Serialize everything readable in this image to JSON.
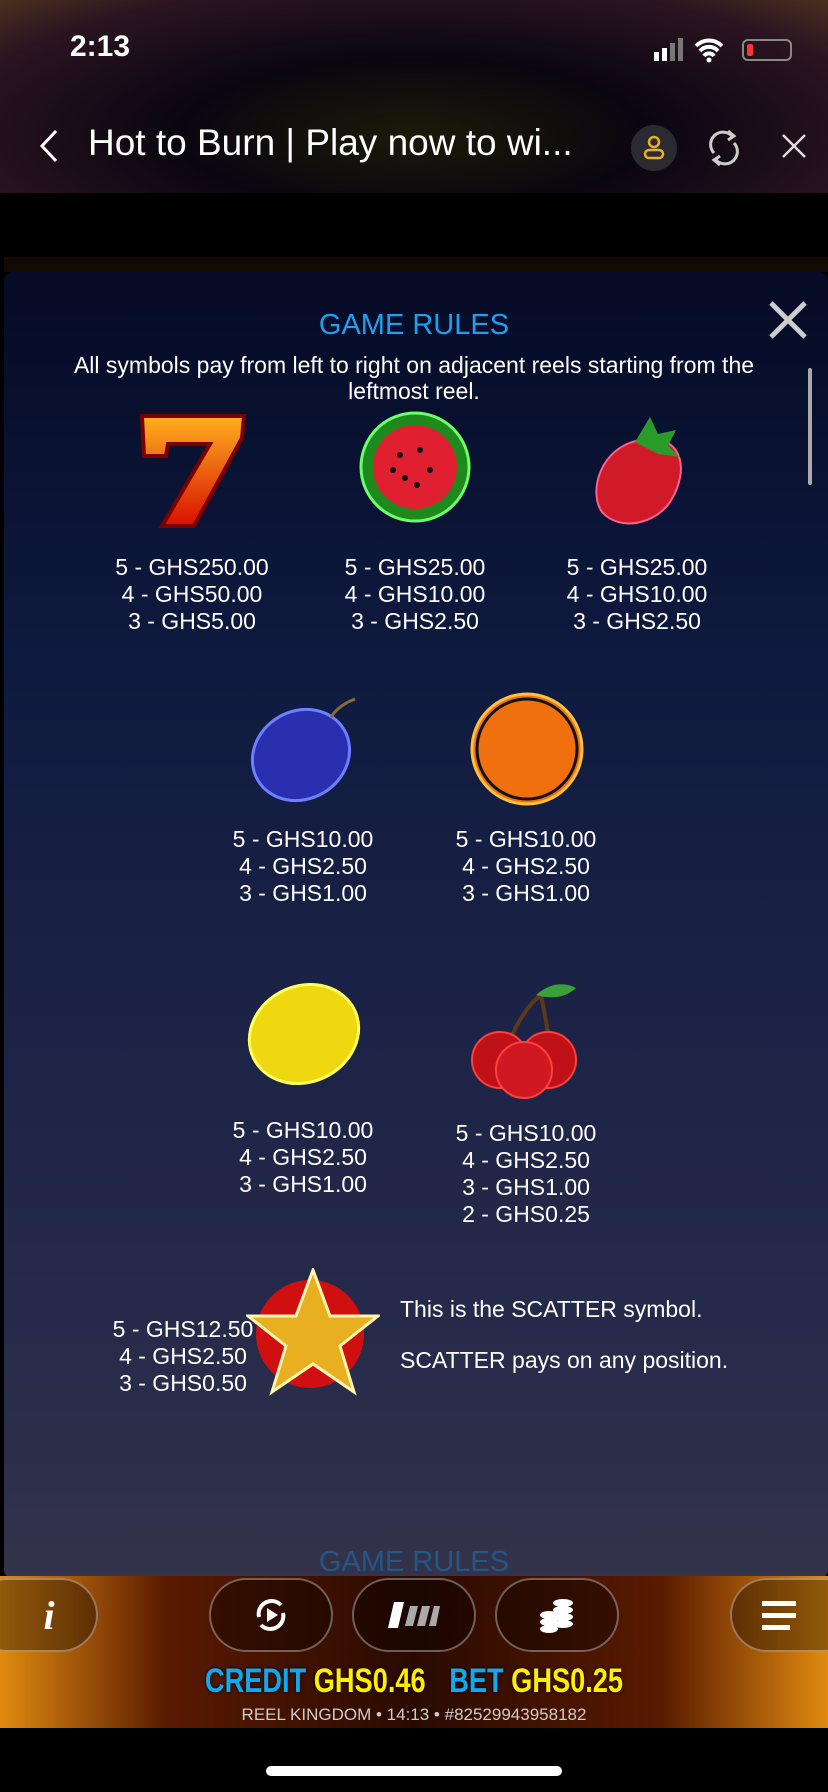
{
  "status": {
    "time": "2:13"
  },
  "browser": {
    "title": "Hot to Burn | Play now to wi...",
    "back_icon": "chevron-left-icon",
    "profile_icon": "user-icon",
    "reload_icon": "refresh-icon",
    "close_icon": "close-icon"
  },
  "rules": {
    "title": "GAME RULES",
    "intro": "All symbols pay from left to right on adjacent reels starting from the leftmost reel.",
    "symbols": [
      {
        "icon": "seven",
        "pays": [
          "5 - GHS250.00",
          "4 - GHS50.00",
          "3 - GHS5.00"
        ]
      },
      {
        "icon": "watermelon",
        "pays": [
          "5 - GHS25.00",
          "4 - GHS10.00",
          "3 - GHS2.50"
        ]
      },
      {
        "icon": "strawberry",
        "pays": [
          "5 - GHS25.00",
          "4 - GHS10.00",
          "3 - GHS2.50"
        ]
      },
      {
        "icon": "plum",
        "pays": [
          "5 - GHS10.00",
          "4 - GHS2.50",
          "3 - GHS1.00"
        ]
      },
      {
        "icon": "orange",
        "pays": [
          "5 - GHS10.00",
          "4 - GHS2.50",
          "3 - GHS1.00"
        ]
      },
      {
        "icon": "lemon",
        "pays": [
          "5 - GHS10.00",
          "4 - GHS2.50",
          "3 - GHS1.00"
        ]
      },
      {
        "icon": "cherry",
        "pays": [
          "5 - GHS10.00",
          "4 - GHS2.50",
          "3 - GHS1.00",
          "2 - GHS0.25"
        ]
      }
    ],
    "scatter": {
      "icon": "star",
      "pays": [
        "5 - GHS12.50",
        "4 - GHS2.50",
        "3 - GHS0.50"
      ],
      "line1": "This is the SCATTER symbol.",
      "line2": "SCATTER pays on any position."
    },
    "next_section": "GAME RULES"
  },
  "footer": {
    "credit_label": "CREDIT",
    "credit_value": "GHS0.46",
    "bet_label": "BET",
    "bet_value": "GHS0.25",
    "info": "REEL KINGDOM • 14:13 • #82529943958182",
    "colors": {
      "label": "#12a8f0",
      "value": "#ffee00"
    }
  }
}
